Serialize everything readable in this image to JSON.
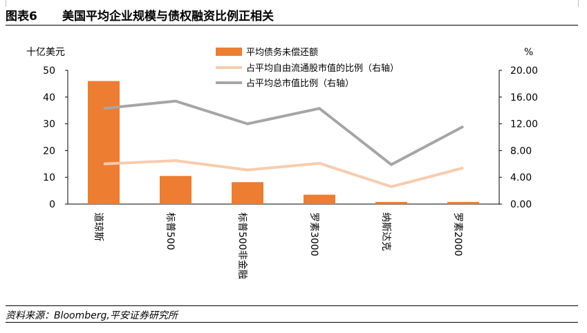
{
  "header": {
    "figure_number": "图表6",
    "title": "美国平均企业规模与债权融资比例正相关"
  },
  "source": "资料来源：Bloomberg,平安证券研究所",
  "colors": {
    "bar": "#ED7D31",
    "free_float_line": "#F8CBAD",
    "total_mcap_line": "#A5A5A5"
  },
  "chart_data": {
    "type": "bar",
    "categories": [
      "道琼斯",
      "标普500",
      "标普500非金融",
      "罗素3000",
      "纳斯达克",
      "罗素2000"
    ],
    "y_left_label": "十亿美元",
    "y_right_label": "%",
    "y_left_lim": [
      0,
      50
    ],
    "y_left_ticks": [
      "0",
      "10",
      "20",
      "30",
      "40",
      "50"
    ],
    "y_right_lim": [
      0,
      20
    ],
    "y_right_ticks": [
      "0.00",
      "4.00",
      "8.00",
      "12.00",
      "16.00",
      "20.00"
    ],
    "grid": false,
    "legend_position": "top-center",
    "series": [
      {
        "name": "平均债务未偿还额",
        "kind": "bar",
        "axis": "left",
        "values": [
          46,
          10.5,
          8.2,
          3.5,
          0.8,
          0.8
        ]
      },
      {
        "name": "占平均自由流通股市值的比例（右轴）",
        "kind": "line",
        "axis": "right",
        "values": [
          6.0,
          6.5,
          5.1,
          6.1,
          2.6,
          5.4
        ]
      },
      {
        "name": "占平均总市值比例（右轴）",
        "kind": "line",
        "axis": "right",
        "values": [
          14.3,
          15.4,
          12.0,
          14.3,
          5.9,
          11.6
        ]
      }
    ]
  }
}
